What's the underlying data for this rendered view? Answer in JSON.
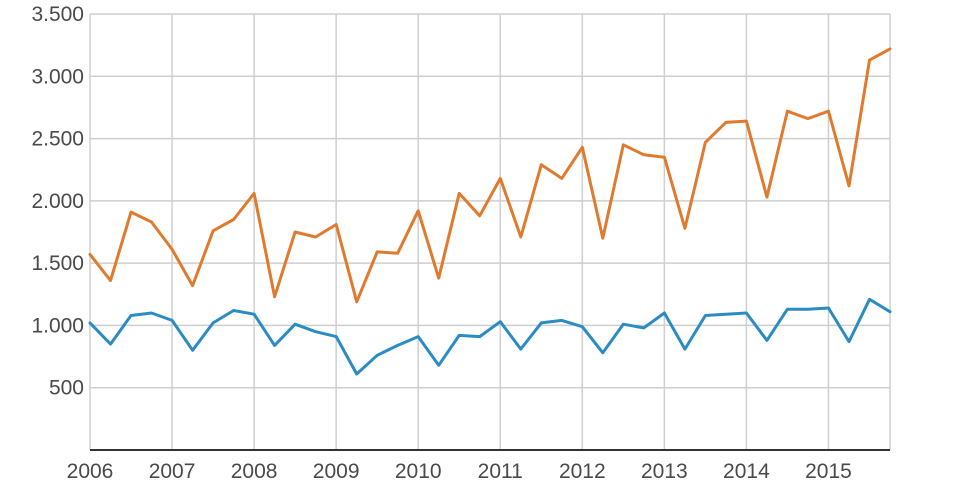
{
  "chart_data": {
    "type": "line",
    "title": "",
    "xlabel": "",
    "ylabel": "",
    "x_tick_labels": [
      "2006",
      "2007",
      "2008",
      "2009",
      "2010",
      "2011",
      "2012",
      "2013",
      "2014",
      "2015"
    ],
    "y_tick_labels": [
      "500",
      "1.000",
      "1.500",
      "2.000",
      "2.500",
      "3.000",
      "3.500"
    ],
    "y_ticks": [
      500,
      1000,
      1500,
      2000,
      2500,
      3000,
      3500
    ],
    "xlim": [
      2006.0,
      2015.75
    ],
    "ylim": [
      0,
      3500
    ],
    "grid": true,
    "legend": "none",
    "x": [
      2006.0,
      2006.25,
      2006.5,
      2006.75,
      2007.0,
      2007.25,
      2007.5,
      2007.75,
      2008.0,
      2008.25,
      2008.5,
      2008.75,
      2009.0,
      2009.25,
      2009.5,
      2009.75,
      2010.0,
      2010.25,
      2010.5,
      2010.75,
      2011.0,
      2011.25,
      2011.5,
      2011.75,
      2012.0,
      2012.25,
      2012.5,
      2012.75,
      2013.0,
      2013.25,
      2013.5,
      2013.75,
      2014.0,
      2014.25,
      2014.5,
      2014.75,
      2015.0,
      2015.25,
      2015.5,
      2015.75
    ],
    "series": [
      {
        "color": "#e07a2e",
        "values": [
          1570,
          1360,
          1910,
          1830,
          1610,
          1320,
          1760,
          1850,
          2060,
          1230,
          1750,
          1710,
          1810,
          1190,
          1590,
          1580,
          1920,
          1380,
          2060,
          1880,
          2180,
          1710,
          2290,
          2180,
          2430,
          1700,
          2450,
          2370,
          2350,
          1780,
          2470,
          2630,
          2640,
          2030,
          2720,
          2660,
          2720,
          2120,
          3130,
          3220
        ]
      },
      {
        "color": "#2b8cc4",
        "values": [
          1020,
          850,
          1080,
          1100,
          1040,
          800,
          1020,
          1120,
          1090,
          840,
          1010,
          950,
          910,
          610,
          760,
          840,
          910,
          680,
          920,
          910,
          1030,
          810,
          1020,
          1040,
          990,
          780,
          1010,
          980,
          1100,
          810,
          1080,
          1090,
          1100,
          880,
          1130,
          1130,
          1140,
          870,
          1210,
          1110
        ]
      }
    ]
  }
}
